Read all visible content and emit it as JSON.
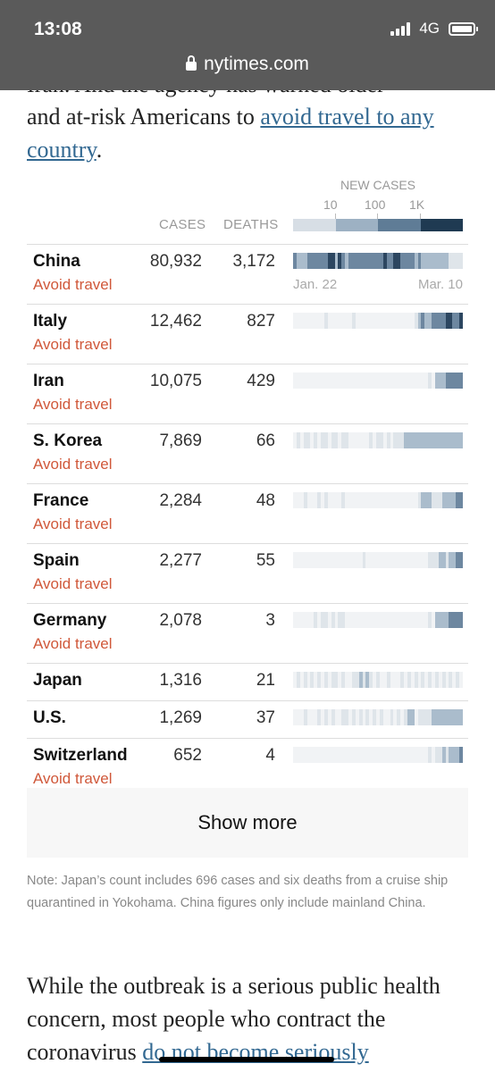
{
  "status_bar": {
    "time": "13:08",
    "network": "4G",
    "url": "nytimes.com"
  },
  "article": {
    "para1_cut": "Iran. And the agency has warned older",
    "para1_text": "and at-risk Americans to ",
    "para1_link": "avoid travel to any country",
    "para1_end": ".",
    "para2_text": "While the outbreak is a serious public health concern, most people who contract the coronavirus ",
    "para2_link": "do not become seriously"
  },
  "table": {
    "headers": {
      "cases": "CASES",
      "deaths": "DEATHS",
      "new_cases": "NEW CASES"
    },
    "legend_ticks": [
      "10",
      "100",
      "1K"
    ],
    "legend_colors": [
      "#d7dee5",
      "#9db1c3",
      "#5f7c96",
      "#1f3a52"
    ],
    "axis_start": "Jan. 22",
    "axis_end": "Mar. 10",
    "rows": [
      {
        "country": "China",
        "advisory": "Avoid travel",
        "cases": "80,932",
        "deaths": "3,172"
      },
      {
        "country": "Italy",
        "advisory": "Avoid travel",
        "cases": "12,462",
        "deaths": "827"
      },
      {
        "country": "Iran",
        "advisory": "Avoid travel",
        "cases": "10,075",
        "deaths": "429"
      },
      {
        "country": "S. Korea",
        "advisory": "Avoid travel",
        "cases": "7,869",
        "deaths": "66"
      },
      {
        "country": "France",
        "advisory": "Avoid travel",
        "cases": "2,284",
        "deaths": "48"
      },
      {
        "country": "Spain",
        "advisory": "Avoid travel",
        "cases": "2,277",
        "deaths": "55"
      },
      {
        "country": "Germany",
        "advisory": "Avoid travel",
        "cases": "2,078",
        "deaths": "3"
      },
      {
        "country": "Japan",
        "advisory": "",
        "cases": "1,316",
        "deaths": "21"
      },
      {
        "country": "U.S.",
        "advisory": "",
        "cases": "1,269",
        "deaths": "37"
      },
      {
        "country": "Switzerland",
        "advisory": "Avoid travel",
        "cases": "652",
        "deaths": "4"
      }
    ],
    "show_more_label": "Show more",
    "note": "Note: Japan’s count includes 696 cases and six deaths from a cruise ship quarantined in Yokohama. China figures only include mainland China."
  }
}
